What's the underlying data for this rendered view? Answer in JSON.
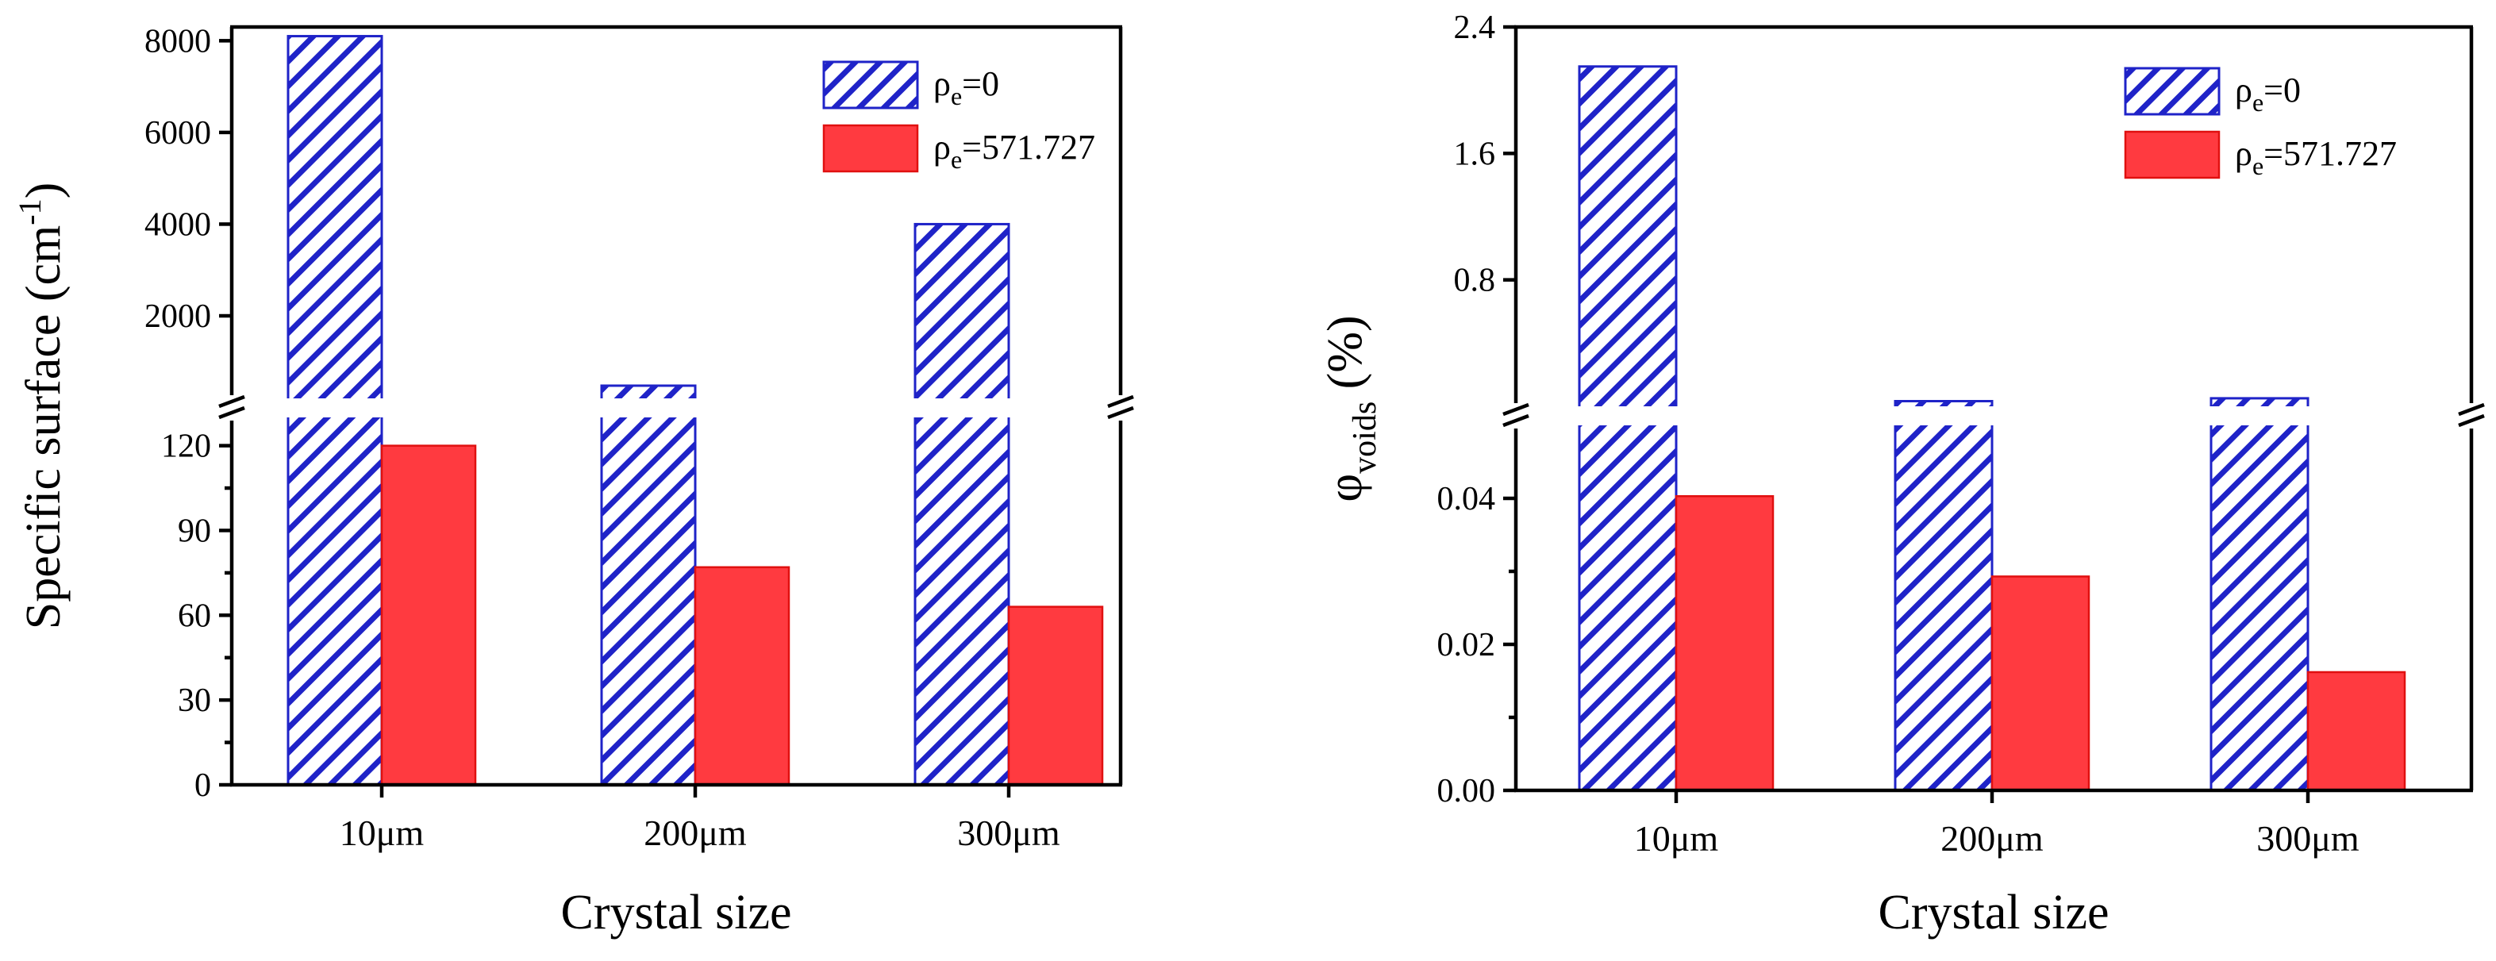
{
  "chart_data": [
    {
      "type": "bar",
      "title": "",
      "xlabel": "Crystal size",
      "ylabel": "Specific surface (cm",
      "ylabel_sup": "-1",
      "ylabel_tail": ")",
      "categories": [
        "10μm",
        "200μm",
        "300μm"
      ],
      "series": [
        {
          "name": "ρ",
          "name_sub": "e",
          "name_tail": "=0",
          "values": [
            8100,
            400,
            4000
          ],
          "style": "hatch"
        },
        {
          "name": "ρ",
          "name_sub": "e",
          "name_tail": "=571.727",
          "values": [
            120,
            77,
            63
          ],
          "style": "solid"
        }
      ],
      "axis_break": {
        "lower_range": [
          0,
          130
        ],
        "upper_range": [
          200,
          8300
        ]
      },
      "lower_ticks": [
        0,
        30,
        60,
        90,
        120
      ],
      "upper_ticks": [
        2000,
        4000,
        6000,
        8000
      ],
      "legend_position": "top-right"
    },
    {
      "type": "bar",
      "title": "",
      "xlabel": "Crystal size",
      "ylabel": "φ",
      "ylabel_sub": "voids",
      "ylabel_tail": "  (%)",
      "categories": [
        "10μm",
        "200μm",
        "300μm"
      ],
      "series": [
        {
          "name": "ρ",
          "name_sub": "e",
          "name_tail": "=0",
          "values": [
            2.15,
            0.05,
            0.09
          ],
          "style": "hatch"
        },
        {
          "name": "ρ",
          "name_sub": "e",
          "name_tail": "=571.727",
          "values": [
            0.0403,
            0.0293,
            0.0162
          ],
          "style": "solid"
        }
      ],
      "axis_break": {
        "lower_range": [
          0,
          0.05
        ],
        "upper_range": [
          0,
          2.4
        ]
      },
      "lower_ticks": [
        "0.00",
        "0.02",
        "0.04"
      ],
      "upper_ticks": [
        "0.8",
        "1.6",
        "2.4"
      ],
      "legend_position": "top-right"
    }
  ],
  "colors": {
    "hatch_blue": "#1f23c8",
    "solid_red": "#ff3a40",
    "solid_red_edge": "#e01010"
  }
}
